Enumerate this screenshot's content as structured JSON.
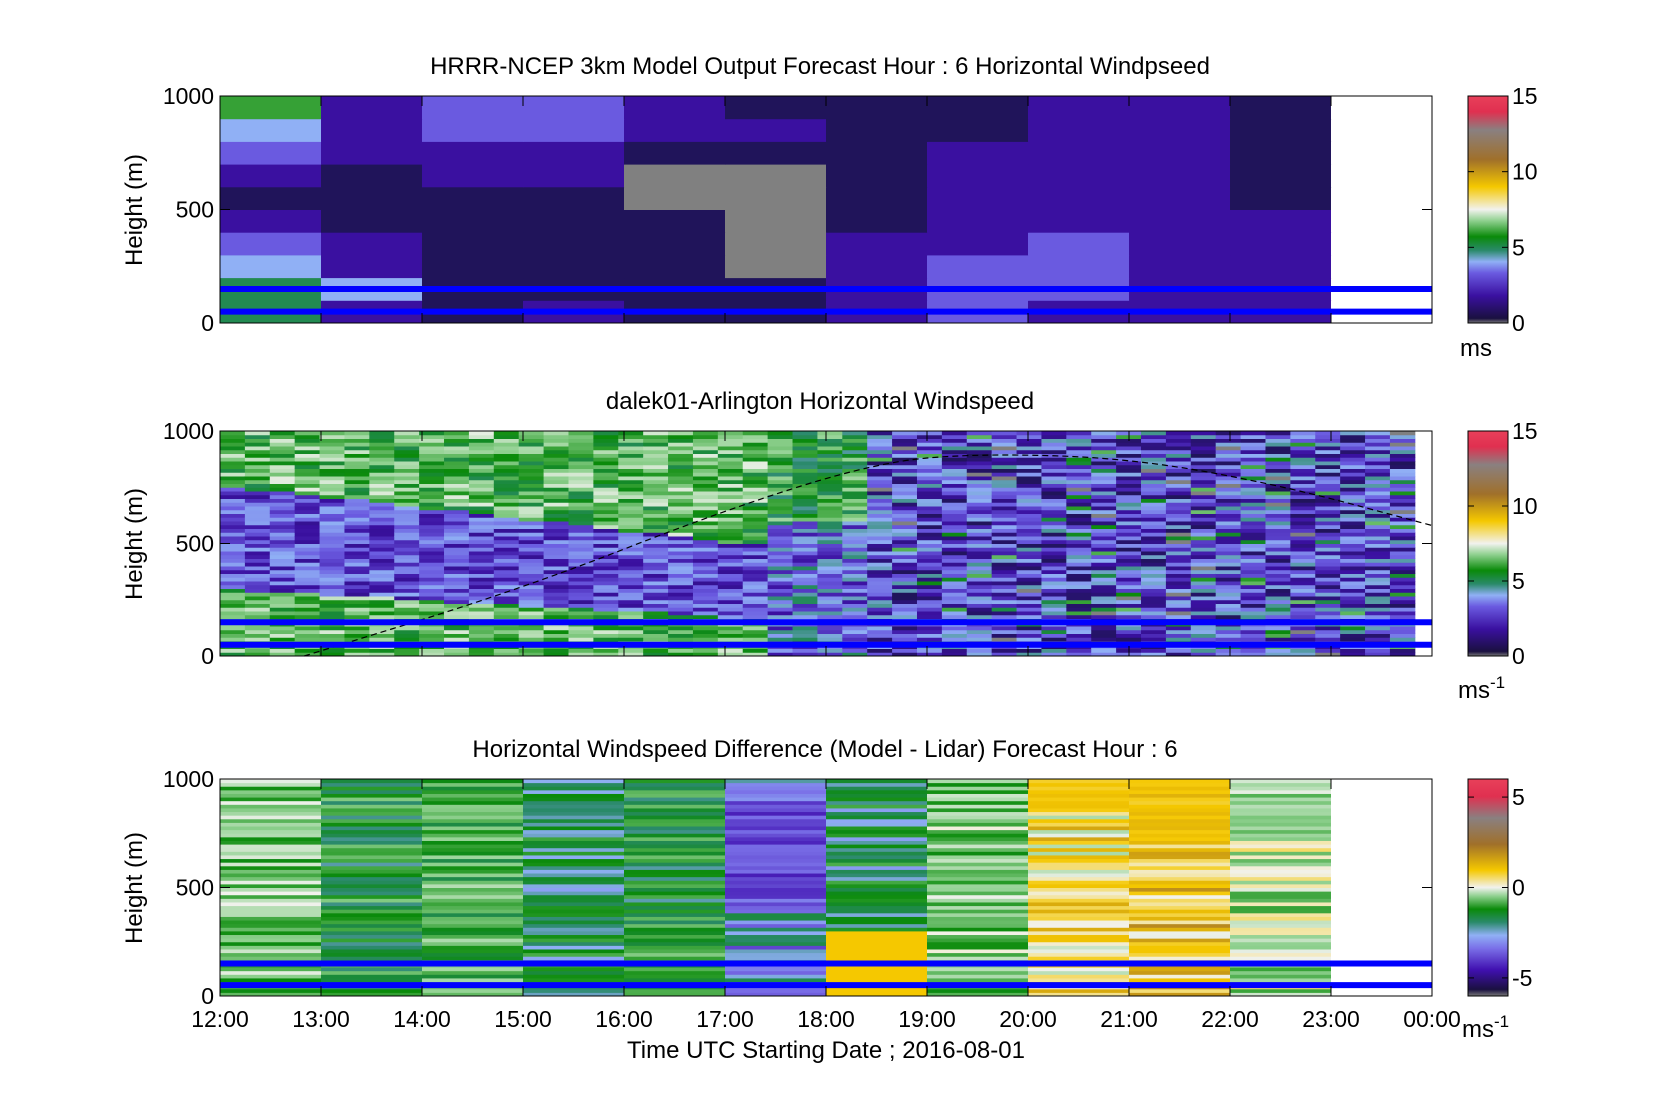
{
  "figure": {
    "xlabel": "Time UTC  Starting Date ; 2016-08-01",
    "x_ticks": [
      "12:00",
      "13:00",
      "14:00",
      "15:00",
      "16:00",
      "17:00",
      "18:00",
      "19:00",
      "20:00",
      "21:00",
      "22:00",
      "23:00",
      "00:00"
    ]
  },
  "colors": {
    "ref_lines": "#0000ff",
    "missing": "#808080",
    "colormap": [
      "#2a1a5a",
      "#3a10a0",
      "#5a3fd8",
      "#8aa8f0",
      "#1a8a1a",
      "#0a8a0a",
      "#c8e6c0",
      "#f5c800",
      "#a0702a",
      "#e0305a"
    ]
  },
  "chart_data": [
    {
      "type": "heatmap",
      "title": "HRRR-NCEP 3km Model Output   Forecast Hour : 6 Horizontal Windpseed",
      "xlabel": "",
      "ylabel": "Height (m)",
      "xlim": [
        "12:00",
        "00:00"
      ],
      "ylim": [
        0,
        1000
      ],
      "y_ticks": [
        "0",
        "500",
        "1000"
      ],
      "x_ticks_shown": false,
      "colorbar": {
        "label": "ms",
        "clim": [
          0,
          15
        ],
        "ticks": [
          "0",
          "5",
          "10",
          "15"
        ]
      },
      "reference_lines_m": [
        50,
        150
      ],
      "columns": [
        "12:00",
        "13:00",
        "14:00",
        "15:00",
        "16:00",
        "17:00",
        "18:00",
        "19:00",
        "20:00",
        "21:00",
        "22:00",
        "23:00"
      ],
      "rows_height_m": [
        50,
        150,
        250,
        350,
        450,
        550,
        650,
        750,
        850,
        950
      ],
      "values": [
        [
          5,
          2,
          1,
          2,
          1,
          1,
          2,
          3,
          2,
          2,
          2,
          null
        ],
        [
          5,
          4,
          1,
          1,
          1,
          1,
          2,
          3,
          3,
          2,
          2,
          null
        ],
        [
          4,
          2,
          1,
          1,
          1,
          null,
          2,
          3,
          3,
          2,
          2,
          null
        ],
        [
          3,
          2,
          1,
          1,
          1,
          null,
          2,
          2,
          3,
          2,
          2,
          null
        ],
        [
          2,
          1,
          1,
          1,
          1,
          null,
          1,
          2,
          2,
          2,
          2,
          null
        ],
        [
          1,
          1,
          1,
          1,
          null,
          null,
          1,
          2,
          2,
          2,
          1,
          null
        ],
        [
          2,
          1,
          2,
          2,
          null,
          null,
          1,
          2,
          2,
          2,
          1,
          null
        ],
        [
          3,
          2,
          2,
          2,
          1,
          1,
          1,
          2,
          2,
          2,
          1,
          null
        ],
        [
          4,
          2,
          3,
          3,
          2,
          2,
          1,
          1,
          2,
          2,
          1,
          null
        ],
        [
          6,
          2,
          3,
          3,
          2,
          1,
          1,
          1,
          2,
          2,
          1,
          null
        ]
      ]
    },
    {
      "type": "heatmap",
      "title": "dalek01-Arlington  Horizontal Windspeed",
      "xlabel": "",
      "ylabel": "Height (m)",
      "xlim": [
        "12:00",
        "00:00"
      ],
      "ylim": [
        0,
        1000
      ],
      "y_ticks": [
        "0",
        "500",
        "1000"
      ],
      "x_ticks_shown": false,
      "colorbar": {
        "label": "ms",
        "label_superscript": "-1",
        "clim": [
          0,
          15
        ],
        "ticks": [
          "0",
          "5",
          "10",
          "15"
        ]
      },
      "reference_lines_m": [
        50,
        150
      ],
      "values_summary": {
        "12:00-17:30": {
          "0-300m": 5.5,
          "300-750m": 2.5,
          "750-1000m": 5.5
        },
        "17:30-23:50": {
          "0-1000m": 2
        }
      },
      "dashed_curve": {
        "x": [
          "12:50",
          "15:00",
          "17:00",
          "18:30",
          "19:30",
          "21:00",
          "22:30",
          "00:00"
        ],
        "y_m": [
          0,
          300,
          650,
          860,
          900,
          880,
          760,
          580
        ]
      }
    },
    {
      "type": "heatmap",
      "title": "Horizontal Windspeed Difference (Model - Lidar) Forecast Hour : 6",
      "xlabel": "Time UTC  Starting Date ; 2016-08-01",
      "ylabel": "Height (m)",
      "xlim": [
        "12:00",
        "00:00"
      ],
      "ylim": [
        0,
        1000
      ],
      "y_ticks": [
        "0",
        "500",
        "1000"
      ],
      "colorbar": {
        "label": "ms",
        "label_superscript": "-1",
        "clim": [
          -6,
          6
        ],
        "ticks": [
          "-5",
          "0",
          "5"
        ]
      },
      "reference_lines_m": [
        50,
        150
      ],
      "columns": [
        "12:00",
        "13:00",
        "14:00",
        "15:00",
        "16:00",
        "17:00",
        "18:00",
        "19:00",
        "20:00",
        "21:00",
        "22:00",
        "23:00"
      ],
      "column_mean_difference": [
        -1,
        -2,
        -1.5,
        -2.5,
        -2,
        -3.5,
        -2.5,
        -1,
        0.5,
        1,
        -0.5,
        null
      ]
    }
  ]
}
